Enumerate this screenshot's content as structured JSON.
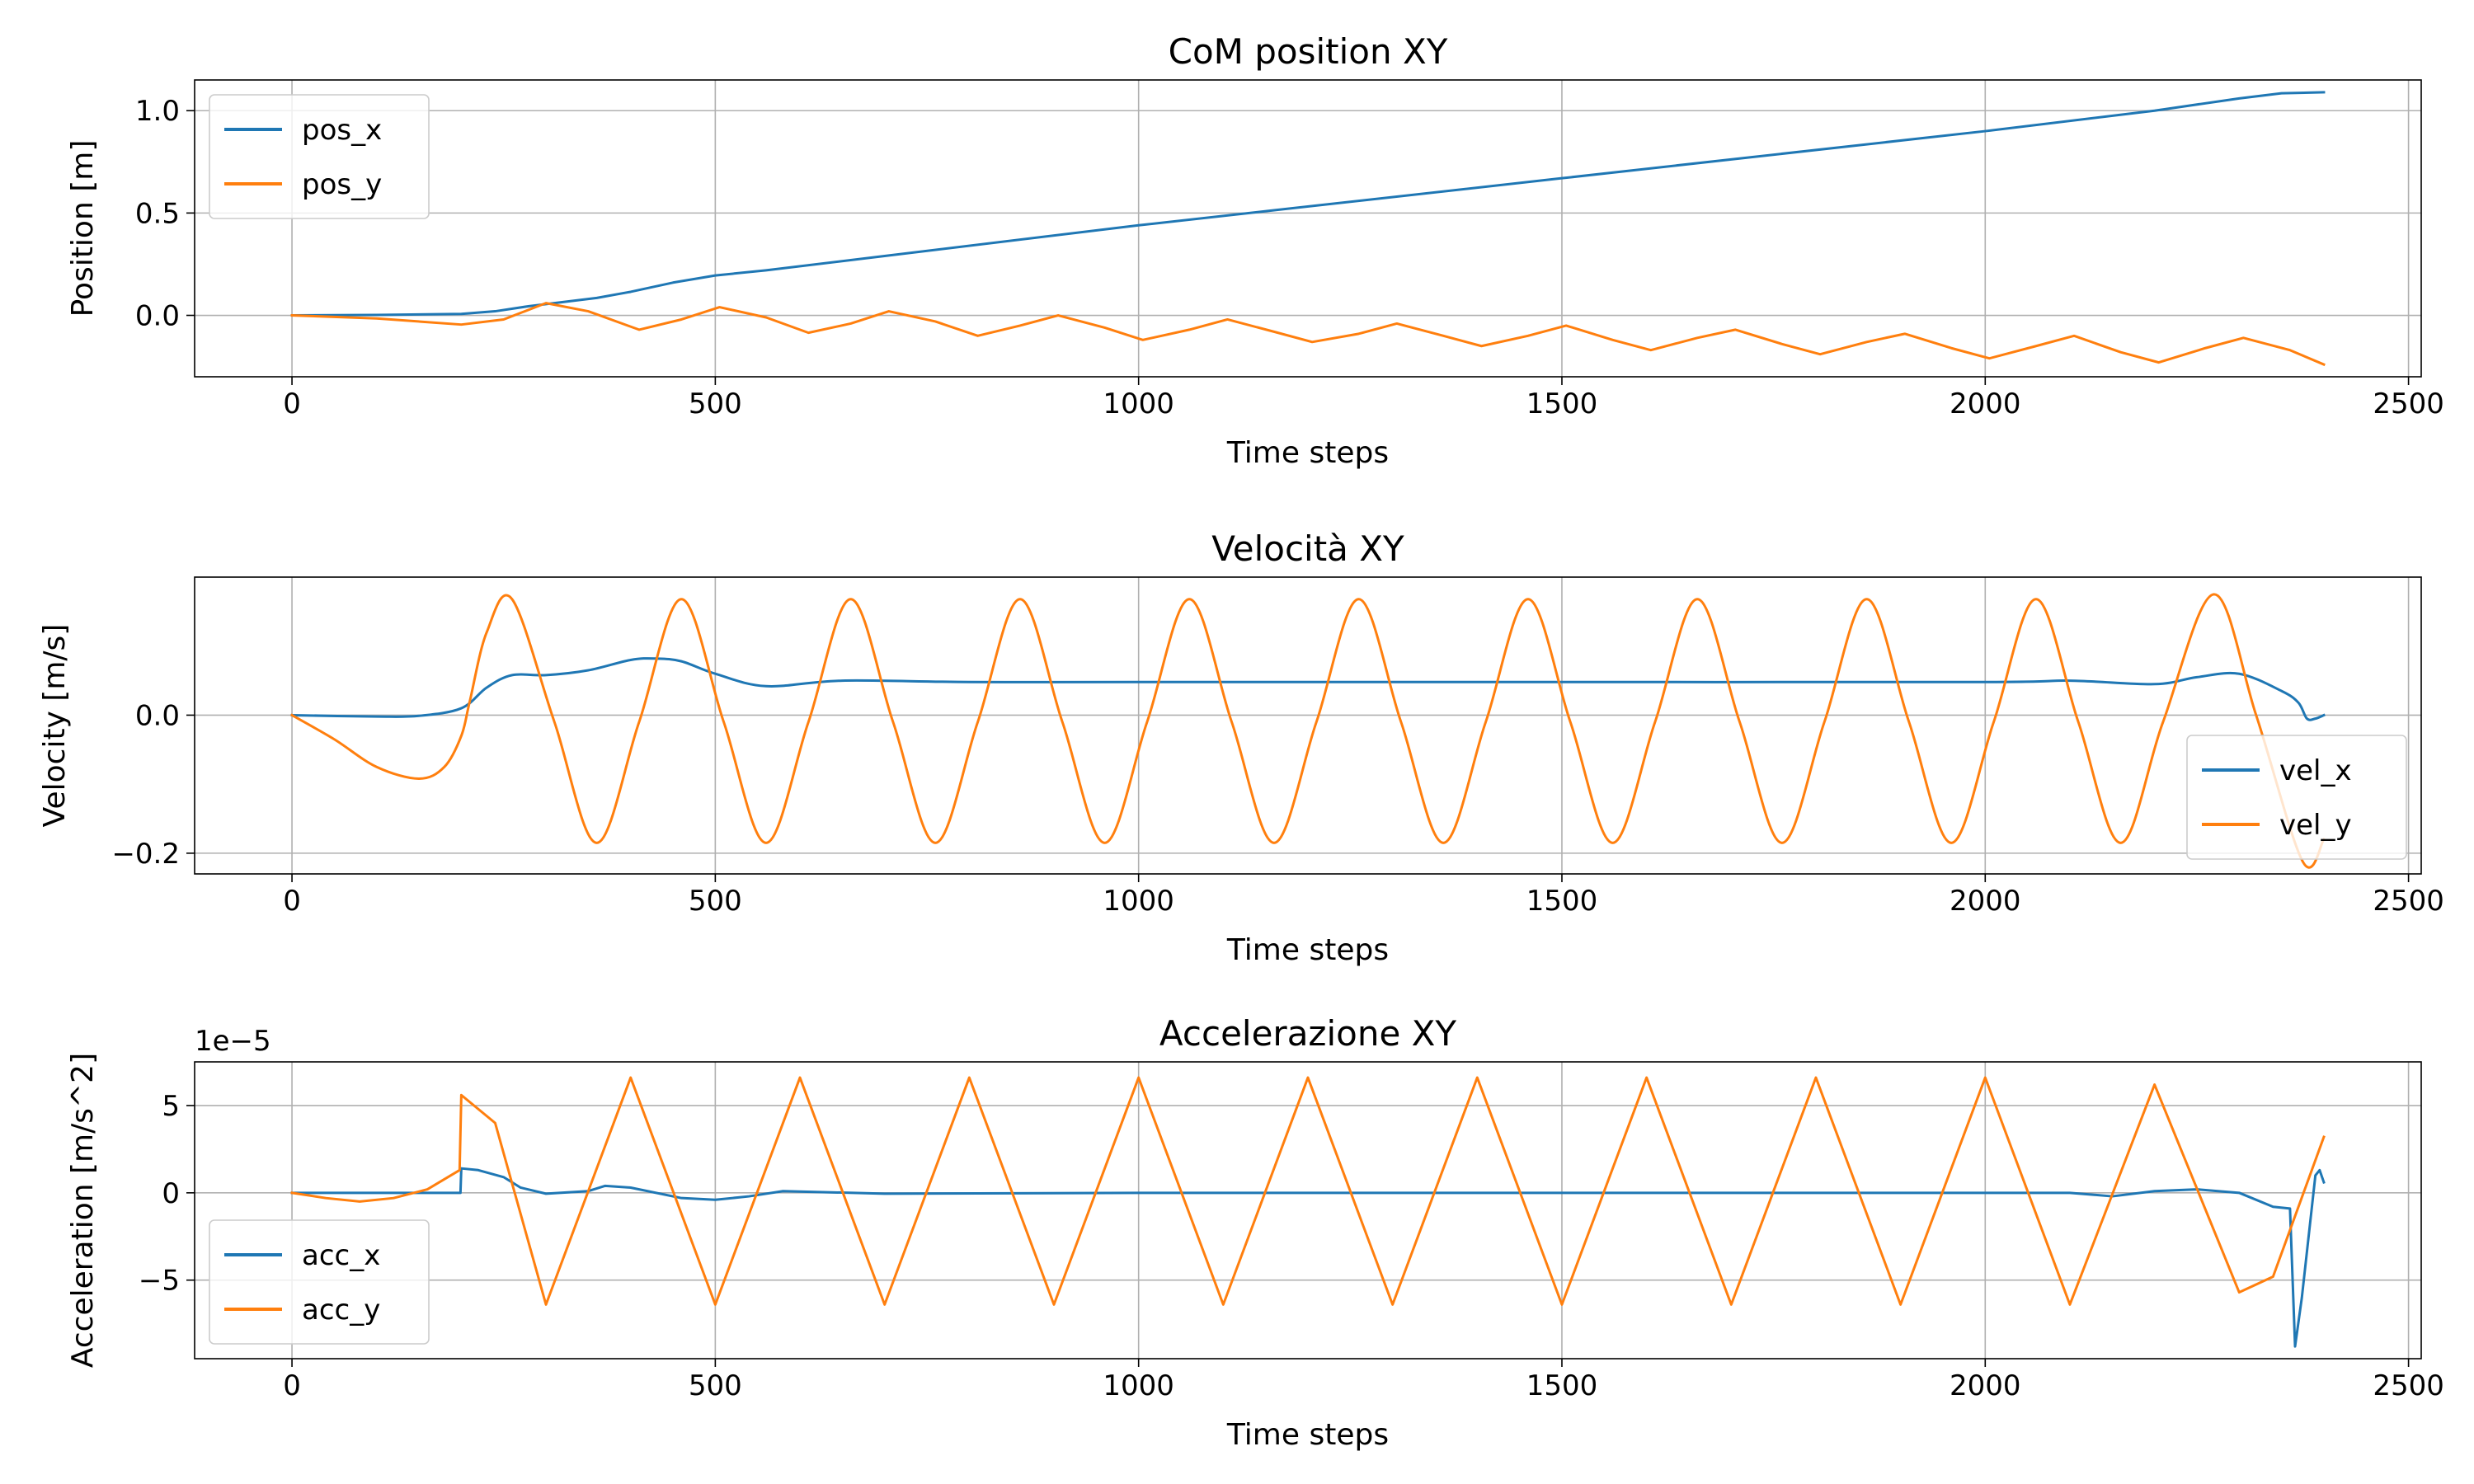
{
  "chart_data": [
    {
      "type": "line",
      "title": "CoM position XY",
      "xlabel": "Time steps",
      "ylabel": "Position [m]",
      "xlim": [
        -115,
        2515
      ],
      "ylim": [
        -0.3,
        1.15
      ],
      "xticks": [
        0,
        500,
        1000,
        1500,
        2000,
        2500
      ],
      "yticks": [
        0.0,
        0.5,
        1.0
      ],
      "yticklabels": [
        "0.0",
        "0.5",
        "1.0"
      ],
      "offset_label": "",
      "grid": true,
      "legend_position": "upper left",
      "colors": {
        "series_1": "#1f77b4",
        "series_2": "#ff7f0e"
      },
      "series": [
        {
          "name": "pos_x",
          "x": [
            0,
            100,
            200,
            240,
            280,
            320,
            360,
            400,
            450,
            500,
            560,
            700,
            1000,
            1500,
            2000,
            2200,
            2300,
            2350,
            2400
          ],
          "y": [
            0.0,
            0.002,
            0.007,
            0.02,
            0.045,
            0.065,
            0.085,
            0.115,
            0.16,
            0.195,
            0.22,
            0.29,
            0.44,
            0.67,
            0.9,
            1.0,
            1.06,
            1.085,
            1.09
          ]
        },
        {
          "name": "pos_y",
          "x": [
            0,
            100,
            200,
            250,
            300,
            350,
            410,
            460,
            505,
            560,
            610,
            660,
            705,
            760,
            810,
            860,
            905,
            960,
            1005,
            1060,
            1105,
            1160,
            1205,
            1260,
            1305,
            1360,
            1405,
            1460,
            1505,
            1560,
            1605,
            1660,
            1705,
            1760,
            1805,
            1860,
            1905,
            1960,
            2005,
            2060,
            2105,
            2160,
            2205,
            2260,
            2305,
            2360,
            2400
          ],
          "y": [
            0.0,
            -0.015,
            -0.045,
            -0.02,
            0.06,
            0.02,
            -0.07,
            -0.02,
            0.04,
            -0.01,
            -0.085,
            -0.04,
            0.02,
            -0.03,
            -0.1,
            -0.05,
            0.0,
            -0.06,
            -0.12,
            -0.07,
            -0.02,
            -0.08,
            -0.13,
            -0.09,
            -0.04,
            -0.1,
            -0.15,
            -0.1,
            -0.05,
            -0.12,
            -0.17,
            -0.11,
            -0.07,
            -0.14,
            -0.19,
            -0.13,
            -0.09,
            -0.16,
            -0.21,
            -0.15,
            -0.1,
            -0.18,
            -0.23,
            -0.16,
            -0.11,
            -0.17,
            -0.24
          ]
        }
      ]
    },
    {
      "type": "line",
      "title": "Velocità XY",
      "xlabel": "Time steps",
      "ylabel": "Velocity [m/s]",
      "xlim": [
        -115,
        2515
      ],
      "ylim": [
        -0.23,
        0.2
      ],
      "xticks": [
        0,
        500,
        1000,
        1500,
        2000,
        2500
      ],
      "yticks": [
        -0.2,
        0.0
      ],
      "yticklabels": [
        "−0.2",
        "0.0"
      ],
      "offset_label": "",
      "grid": true,
      "legend_position": "lower right",
      "colors": {
        "series_1": "#1f77b4",
        "series_2": "#ff7f0e"
      },
      "series": [
        {
          "name": "vel_x",
          "x": [
            0,
            100,
            150,
            200,
            230,
            260,
            300,
            350,
            400,
            430,
            460,
            500,
            560,
            650,
            800,
            1000,
            1500,
            2000,
            2100,
            2200,
            2250,
            2300,
            2350,
            2370,
            2380,
            2390,
            2400
          ],
          "y": [
            0.0,
            -0.002,
            -0.001,
            0.01,
            0.04,
            0.058,
            0.058,
            0.065,
            0.08,
            0.082,
            0.078,
            0.06,
            0.042,
            0.05,
            0.048,
            0.048,
            0.048,
            0.048,
            0.05,
            0.045,
            0.055,
            0.06,
            0.035,
            0.018,
            -0.005,
            -0.005,
            0.0
          ],
          "interpolate": true
        },
        {
          "name": "vel_y",
          "x": [
            0,
            50,
            100,
            150,
            180,
            200,
            210,
            230,
            260,
            310,
            360,
            410,
            460,
            510,
            560,
            610,
            660,
            710,
            760,
            810,
            860,
            910,
            960,
            1010,
            1060,
            1110,
            1160,
            1210,
            1260,
            1310,
            1360,
            1410,
            1460,
            1510,
            1560,
            1610,
            1660,
            1710,
            1760,
            1810,
            1860,
            1910,
            1960,
            2010,
            2060,
            2110,
            2160,
            2210,
            2270,
            2320,
            2375,
            2400
          ],
          "y": [
            0.0,
            -0.035,
            -0.075,
            -0.092,
            -0.075,
            -0.03,
            0.02,
            0.12,
            0.168,
            -0.01,
            -0.185,
            -0.01,
            0.168,
            -0.01,
            -0.185,
            -0.01,
            0.168,
            -0.01,
            -0.185,
            -0.01,
            0.168,
            -0.01,
            -0.185,
            -0.01,
            0.168,
            -0.01,
            -0.185,
            -0.01,
            0.168,
            -0.01,
            -0.185,
            -0.01,
            0.168,
            -0.01,
            -0.185,
            -0.01,
            0.168,
            -0.01,
            -0.185,
            -0.01,
            0.168,
            -0.01,
            -0.185,
            -0.01,
            0.168,
            -0.01,
            -0.185,
            -0.01,
            0.175,
            0.0,
            -0.212,
            -0.18
          ],
          "interpolate": true
        }
      ]
    },
    {
      "type": "line",
      "title": "Accelerazione XY",
      "xlabel": "Time steps",
      "ylabel": "Acceleration [m/s^2]",
      "xlim": [
        -115,
        2515
      ],
      "ylim": [
        -9.5,
        7.5
      ],
      "xticks": [
        0,
        500,
        1000,
        1500,
        2000,
        2500
      ],
      "yticks": [
        -5,
        0,
        5
      ],
      "yticklabels": [
        "−5",
        "0",
        "5"
      ],
      "offset_label": "1e−5",
      "grid": true,
      "legend_position": "lower left",
      "colors": {
        "series_1": "#1f77b4",
        "series_2": "#ff7f0e"
      },
      "series": [
        {
          "name": "acc_x",
          "x": [
            0,
            150,
            190,
            199,
            200,
            220,
            250,
            270,
            300,
            350,
            370,
            400,
            460,
            500,
            540,
            580,
            700,
            1000,
            1500,
            2000,
            2100,
            2150,
            2200,
            2250,
            2300,
            2340,
            2360,
            2366,
            2374,
            2390,
            2395,
            2400
          ],
          "y": [
            0.0,
            0.0,
            0.0,
            0.0,
            1.4,
            1.3,
            0.9,
            0.3,
            -0.05,
            0.1,
            0.4,
            0.3,
            -0.3,
            -0.4,
            -0.2,
            0.1,
            -0.05,
            0.0,
            0.0,
            0.0,
            0.0,
            -0.2,
            0.1,
            0.2,
            0.0,
            -0.8,
            -0.9,
            -8.8,
            -6.0,
            1.0,
            1.3,
            0.6
          ]
        },
        {
          "name": "acc_y",
          "x": [
            0,
            40,
            80,
            120,
            160,
            198,
            200,
            240,
            300,
            400,
            500,
            600,
            700,
            800,
            900,
            1000,
            1100,
            1200,
            1300,
            1400,
            1500,
            1600,
            1700,
            1800,
            1900,
            2000,
            2100,
            2200,
            2300,
            2340,
            2400
          ],
          "y": [
            0.0,
            -0.3,
            -0.5,
            -0.3,
            0.2,
            1.3,
            5.6,
            4.0,
            -6.4,
            6.6,
            -6.4,
            6.6,
            -6.4,
            6.6,
            -6.4,
            6.6,
            -6.4,
            6.6,
            -6.4,
            6.6,
            -6.4,
            6.6,
            -6.4,
            6.6,
            -6.4,
            6.6,
            -6.4,
            6.2,
            -5.7,
            -4.8,
            3.2
          ]
        }
      ]
    }
  ]
}
